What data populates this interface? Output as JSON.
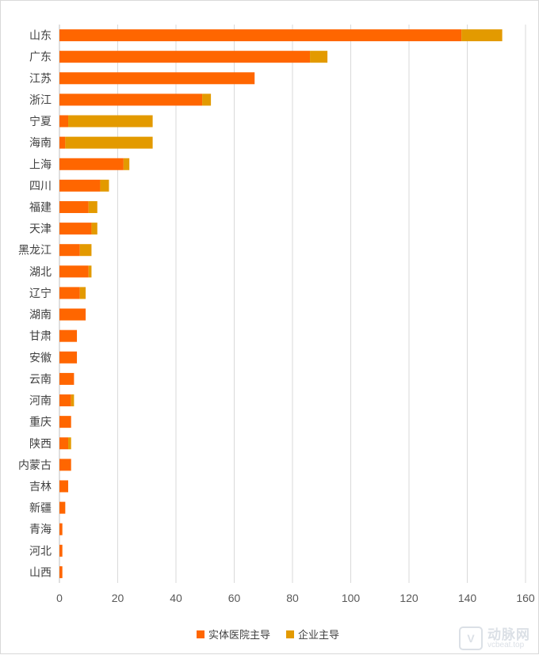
{
  "chart_data": {
    "type": "bar",
    "orientation": "horizontal",
    "stacked": true,
    "categories": [
      "山东",
      "广东",
      "江苏",
      "浙江",
      "宁夏",
      "海南",
      "上海",
      "四川",
      "福建",
      "天津",
      "黑龙江",
      "湖北",
      "辽宁",
      "湖南",
      "甘肃",
      "安徽",
      "云南",
      "河南",
      "重庆",
      "陕西",
      "内蒙古",
      "吉林",
      "新疆",
      "青海",
      "河北",
      "山西"
    ],
    "series": [
      {
        "name": "实体医院主导",
        "color": "#ff6600",
        "values": [
          138,
          86,
          67,
          49,
          3,
          2,
          22,
          14,
          10,
          11,
          7,
          10,
          7,
          9,
          6,
          6,
          5,
          4,
          4,
          3,
          4,
          3,
          2,
          1,
          1,
          1
        ]
      },
      {
        "name": "企业主导",
        "color": "#e39a00",
        "values": [
          14,
          6,
          0,
          3,
          29,
          30,
          2,
          3,
          3,
          2,
          4,
          1,
          2,
          0,
          0,
          0,
          0,
          1,
          0,
          1,
          0,
          0,
          0,
          0,
          0,
          0
        ]
      }
    ],
    "xlim": [
      0,
      160
    ],
    "xticks": [
      0,
      20,
      40,
      60,
      80,
      100,
      120,
      140,
      160
    ],
    "grid": "vertical",
    "legend": "bottom"
  },
  "watermark": {
    "logo_letter": "V",
    "main": "动脉网",
    "sub": "vcbeat.top"
  }
}
